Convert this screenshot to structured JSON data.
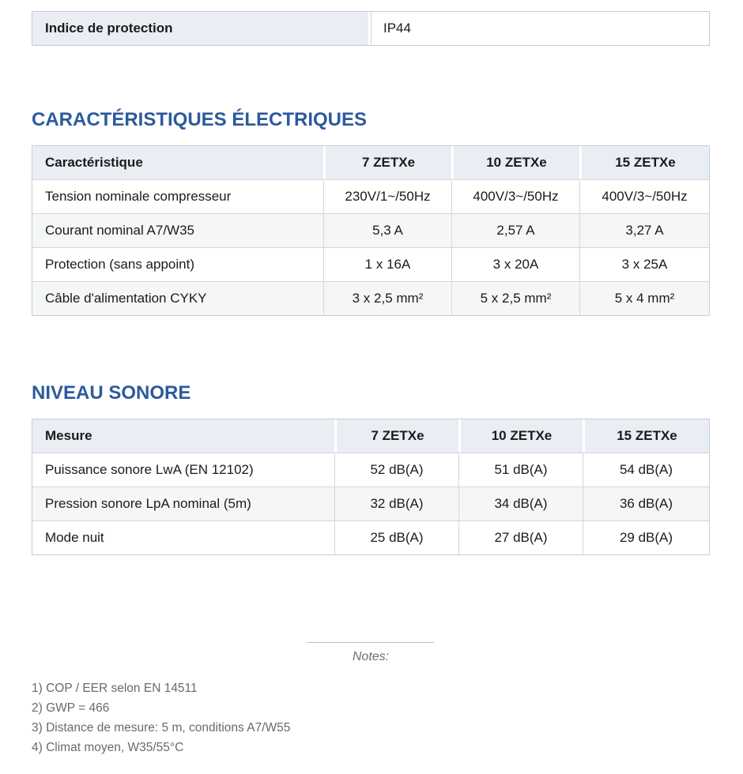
{
  "colors": {
    "accent_blue": "#2d5a9c",
    "header_bg": "#e9eef4",
    "stripe_bg": "#f5f6f7",
    "border": "#c9ced3",
    "note_text": "#6a6a6a"
  },
  "protection_row": {
    "label": "Indice de protection",
    "value": "IP44"
  },
  "electrical": {
    "title": "CARACTÉRISTIQUES ÉLECTRIQUES",
    "columns": [
      "Caractéristique",
      "7 ZETXe",
      "10 ZETXe",
      "15 ZETXe"
    ],
    "rows": [
      [
        "Tension nominale compresseur",
        "230V/1~/50Hz",
        "400V/3~/50Hz",
        "400V/3~/50Hz"
      ],
      [
        "Courant nominal A7/W35",
        "5,3 A",
        "2,57 A",
        "3,27 A"
      ],
      [
        "Protection (sans appoint)",
        "1 x 16A",
        "3 x 20A",
        "3 x 25A"
      ],
      [
        "Câble d'alimentation CYKY",
        "3 x 2,5 mm²",
        "5 x 2,5 mm²",
        "5 x 4 mm²"
      ]
    ]
  },
  "sound": {
    "title": "NIVEAU SONORE",
    "columns": [
      "Mesure",
      "7 ZETXe",
      "10 ZETXe",
      "15 ZETXe"
    ],
    "rows": [
      [
        "Puissance sonore LwA (EN 12102)",
        "52 dB(A)",
        "51 dB(A)",
        "54 dB(A)"
      ],
      [
        "Pression sonore LpA nominal (5m)",
        "32 dB(A)",
        "34 dB(A)",
        "36 dB(A)"
      ],
      [
        "Mode nuit",
        "25 dB(A)",
        "27 dB(A)",
        "29 dB(A)"
      ]
    ]
  },
  "notes": {
    "label": "Notes:",
    "items": [
      "1) COP / EER selon EN 14511",
      "2) GWP = 466",
      "3) Distance de mesure: 5 m, conditions A7/W55",
      "4) Climat moyen, W35/55°C"
    ]
  }
}
